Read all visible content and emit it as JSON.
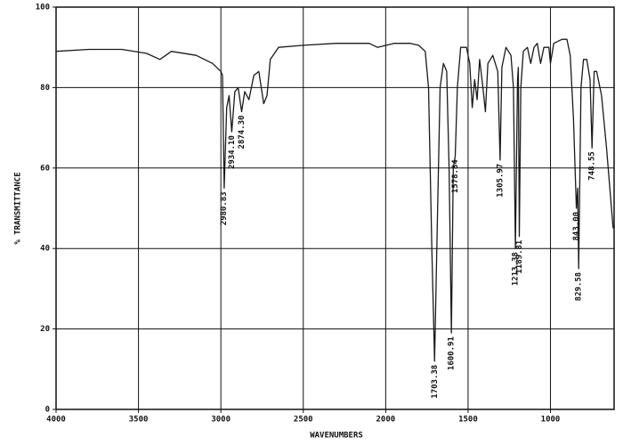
{
  "chart_data": {
    "type": "line",
    "xlabel": "WAVENUMBERS",
    "ylabel": "% TRANSMITTANCE",
    "xlim": [
      4000,
      614
    ],
    "ylim": [
      0,
      100
    ],
    "xticks": [
      4000,
      3500,
      3000,
      2500,
      2000,
      1500,
      1000
    ],
    "yticks": [
      0,
      20,
      40,
      60,
      80,
      100
    ],
    "grid": true,
    "color": "#1a1a1a",
    "x": [
      4000,
      3800,
      3600,
      3450,
      3370,
      3300,
      3150,
      3050,
      3000,
      2990,
      2980,
      2965,
      2950,
      2934,
      2915,
      2895,
      2874,
      2855,
      2830,
      2800,
      2770,
      2740,
      2720,
      2700,
      2650,
      2500,
      2300,
      2100,
      2050,
      1950,
      1850,
      1800,
      1760,
      1740,
      1720,
      1703,
      1690,
      1670,
      1650,
      1630,
      1615,
      1601,
      1590,
      1578,
      1565,
      1545,
      1510,
      1490,
      1475,
      1460,
      1445,
      1430,
      1410,
      1395,
      1380,
      1350,
      1320,
      1306,
      1295,
      1270,
      1240,
      1225,
      1213,
      1200,
      1195,
      1189,
      1180,
      1165,
      1140,
      1120,
      1100,
      1080,
      1060,
      1040,
      1010,
      1000,
      980,
      930,
      900,
      880,
      860,
      843,
      835,
      829,
      815,
      800,
      780,
      760,
      748,
      735,
      720,
      690,
      660,
      620
    ],
    "values": [
      89,
      89.5,
      89.5,
      88.5,
      87,
      89,
      88,
      86,
      84,
      83,
      55,
      75,
      78,
      69,
      79,
      80,
      74,
      79,
      77,
      83,
      84,
      76,
      78,
      87,
      90,
      90.5,
      91,
      91,
      90,
      91,
      91,
      90.5,
      89,
      80,
      40,
      12,
      40,
      80,
      86,
      84,
      60,
      19,
      60,
      63,
      80,
      90,
      90,
      86,
      75,
      82,
      77,
      87,
      80,
      74,
      86,
      88,
      84,
      62,
      85,
      90,
      88,
      80,
      40,
      82,
      85,
      43,
      80,
      89,
      90,
      86,
      90,
      91,
      86,
      90,
      90,
      86,
      91,
      92,
      92,
      88,
      72,
      50,
      55,
      35,
      80,
      87,
      87,
      82,
      65,
      84,
      84,
      78,
      65,
      45
    ],
    "annotations": [
      {
        "label": "2980.83",
        "x": 2980.83,
        "y": 55
      },
      {
        "label": "2934.10",
        "x": 2934.1,
        "y": 69
      },
      {
        "label": "2874.30",
        "x": 2874.3,
        "y": 74
      },
      {
        "label": "1703.38",
        "x": 1703.38,
        "y": 12
      },
      {
        "label": "1600.91",
        "x": 1600.91,
        "y": 19
      },
      {
        "label": "1578.84",
        "x": 1578.84,
        "y": 63
      },
      {
        "label": "1305.97",
        "x": 1305.97,
        "y": 62
      },
      {
        "label": "1213.38",
        "x": 1213.38,
        "y": 40
      },
      {
        "label": "1189.81",
        "x": 1189.81,
        "y": 43
      },
      {
        "label": "843.00",
        "x": 843.0,
        "y": 50
      },
      {
        "label": "829.58",
        "x": 829.58,
        "y": 35
      },
      {
        "label": "748.55",
        "x": 748.55,
        "y": 65
      }
    ]
  }
}
